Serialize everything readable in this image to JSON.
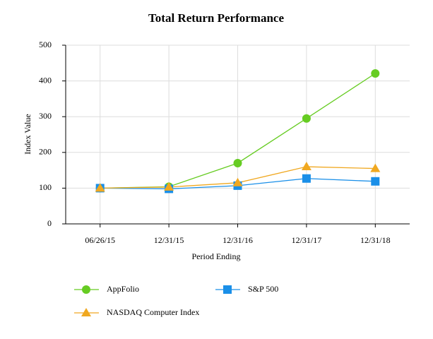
{
  "chart_data": {
    "type": "line",
    "title": "Total Return Performance",
    "x_label": "Period Ending",
    "y_label": "Index Value",
    "categories": [
      "06/26/15",
      "12/31/15",
      "12/31/16",
      "12/31/17",
      "12/31/18"
    ],
    "series": [
      {
        "name": "AppFolio",
        "color": "#66cc22",
        "marker": "circle",
        "values": [
          100,
          104,
          170,
          295,
          421
        ]
      },
      {
        "name": "S&P 500",
        "color": "#1a8fe8",
        "marker": "square",
        "values": [
          100,
          98,
          107,
          127,
          119
        ]
      },
      {
        "name": "NASDAQ Computer Index",
        "color": "#f0a820",
        "marker": "triangle",
        "values": [
          100,
          103,
          115,
          160,
          155
        ]
      }
    ],
    "ylim": [
      0,
      500
    ],
    "yticks": [
      0,
      100,
      200,
      300,
      400,
      500
    ],
    "grid": true
  }
}
